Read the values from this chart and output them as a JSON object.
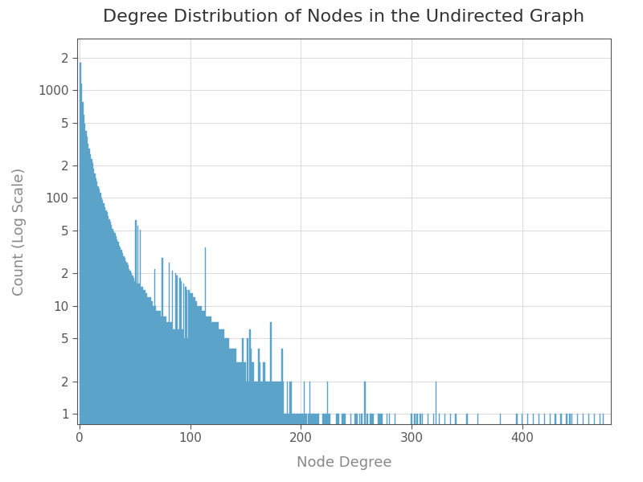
{
  "title": "Degree Distribution of Nodes in the Undirected Graph",
  "xlabel": "Node Degree",
  "ylabel": "Count (Log Scale)",
  "bar_color": "#5ba3c9",
  "xlim_left": -2,
  "xlim_right": 480,
  "ylim_min": 0.8,
  "ylim_max": 3000,
  "background_color": "#ffffff",
  "grid_color": "#dddddd",
  "title_fontsize": 16,
  "label_fontsize": 13,
  "tick_fontsize": 11,
  "degree_counts": {
    "1": 1788,
    "2": 1149,
    "3": 768,
    "4": 590,
    "5": 488,
    "6": 418,
    "7": 370,
    "8": 318,
    "9": 284,
    "10": 253,
    "11": 228,
    "12": 210,
    "13": 186,
    "14": 168,
    "15": 151,
    "16": 143,
    "17": 129,
    "18": 122,
    "19": 112,
    "20": 101,
    "21": 96,
    "22": 89,
    "23": 82,
    "24": 77,
    "25": 74,
    "26": 68,
    "27": 63,
    "28": 60,
    "29": 56,
    "30": 52,
    "31": 49,
    "32": 47,
    "33": 44,
    "34": 41,
    "35": 39,
    "36": 36,
    "37": 35,
    "38": 33,
    "39": 31,
    "40": 29,
    "41": 28,
    "42": 26,
    "43": 25,
    "44": 24,
    "45": 22,
    "46": 21,
    "47": 20,
    "48": 19,
    "49": 18,
    "50": 17,
    "51": 62,
    "52": 16,
    "53": 55,
    "54": 16,
    "55": 51,
    "56": 15,
    "57": 15,
    "58": 14,
    "59": 14,
    "60": 13,
    "61": 13,
    "62": 12,
    "63": 12,
    "64": 12,
    "65": 11,
    "66": 11,
    "67": 10,
    "68": 22,
    "69": 10,
    "70": 9,
    "71": 9,
    "72": 9,
    "73": 9,
    "74": 8,
    "75": 28,
    "76": 8,
    "77": 8,
    "78": 8,
    "79": 7,
    "80": 7,
    "81": 25,
    "82": 7,
    "83": 7,
    "84": 21,
    "85": 6,
    "86": 6,
    "87": 20,
    "88": 19,
    "89": 6,
    "90": 6,
    "91": 18,
    "92": 17,
    "93": 6,
    "94": 16,
    "95": 5,
    "96": 15,
    "97": 14,
    "98": 5,
    "99": 14,
    "100": 13,
    "101": 13,
    "102": 13,
    "103": 12,
    "104": 12,
    "105": 11,
    "106": 11,
    "107": 10,
    "108": 10,
    "109": 10,
    "110": 10,
    "111": 9,
    "112": 9,
    "113": 9,
    "114": 35,
    "115": 8,
    "116": 8,
    "117": 8,
    "118": 8,
    "119": 8,
    "120": 7,
    "121": 7,
    "122": 7,
    "123": 7,
    "124": 7,
    "125": 7,
    "126": 6,
    "127": 6,
    "128": 6,
    "129": 6,
    "130": 6,
    "131": 5,
    "132": 5,
    "133": 5,
    "134": 5,
    "135": 5,
    "136": 4,
    "137": 4,
    "138": 4,
    "139": 4,
    "140": 4,
    "141": 4,
    "142": 3,
    "143": 3,
    "144": 3,
    "145": 3,
    "146": 3,
    "147": 5,
    "148": 5,
    "149": 3,
    "150": 3,
    "151": 2,
    "152": 5,
    "153": 2,
    "154": 6,
    "155": 4,
    "156": 3,
    "157": 3,
    "158": 2,
    "159": 2,
    "160": 2,
    "161": 2,
    "162": 4,
    "163": 3,
    "164": 2,
    "165": 2,
    "166": 3,
    "167": 3,
    "168": 2,
    "169": 2,
    "170": 2,
    "171": 2,
    "172": 2,
    "173": 7,
    "174": 2,
    "175": 2,
    "176": 2,
    "177": 2,
    "178": 2,
    "179": 2,
    "180": 2,
    "181": 2,
    "182": 2,
    "183": 4,
    "184": 2,
    "185": 1,
    "186": 1,
    "187": 1,
    "188": 2,
    "189": 1,
    "190": 2,
    "191": 2,
    "192": 1,
    "193": 1,
    "194": 1,
    "195": 1,
    "196": 1,
    "197": 1,
    "198": 1,
    "199": 1,
    "200": 1,
    "201": 1,
    "202": 1,
    "203": 2,
    "204": 1,
    "205": 1,
    "207": 1,
    "208": 2,
    "209": 1,
    "210": 1,
    "211": 1,
    "212": 1,
    "213": 1,
    "214": 1,
    "215": 1,
    "216": 1,
    "220": 1,
    "221": 1,
    "222": 1,
    "223": 1,
    "224": 2,
    "225": 1,
    "226": 1,
    "232": 1,
    "233": 1,
    "234": 1,
    "237": 1,
    "238": 1,
    "239": 1,
    "240": 1,
    "245": 1,
    "249": 1,
    "250": 1,
    "251": 1,
    "253": 1,
    "255": 1,
    "258": 2,
    "260": 1,
    "263": 1,
    "264": 1,
    "265": 1,
    "270": 1,
    "271": 1,
    "272": 1,
    "273": 1,
    "278": 1,
    "280": 1,
    "285": 1,
    "300": 1,
    "303": 1,
    "305": 1,
    "308": 1,
    "310": 1,
    "315": 1,
    "320": 1,
    "322": 2,
    "325": 1,
    "330": 1,
    "335": 1,
    "340": 1,
    "350": 1,
    "360": 1,
    "380": 1,
    "395": 1,
    "400": 1,
    "405": 1,
    "410": 1,
    "415": 1,
    "420": 1,
    "425": 1,
    "430": 1,
    "435": 1,
    "440": 1,
    "443": 1,
    "445": 1,
    "450": 1,
    "455": 1,
    "460": 1,
    "465": 1,
    "470": 1,
    "473": 1
  }
}
